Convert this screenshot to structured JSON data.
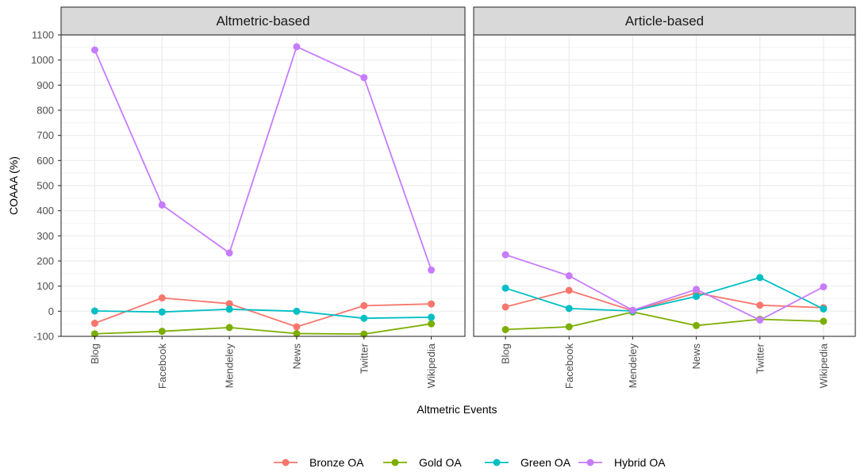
{
  "chart_data": {
    "type": "line",
    "xlabel": "Altmetric Events",
    "ylabel": "COAAA (%)",
    "ylim": [
      -100,
      1100
    ],
    "yticks": [
      -100,
      0,
      100,
      200,
      300,
      400,
      500,
      600,
      700,
      800,
      900,
      1000,
      1100
    ],
    "categories": [
      "Blog",
      "Facebook",
      "Mendeley",
      "News",
      "Twitter",
      "Wikipedia"
    ],
    "grid": true,
    "legend_position": "bottom",
    "series_colors": {
      "Bronze OA": "#F8766D",
      "Gold OA": "#7CAE00",
      "Green OA": "#00BFC4",
      "Hybrid OA": "#C77CFF"
    },
    "legend": [
      "Bronze OA",
      "Gold OA",
      "Green OA",
      "Hybrid OA"
    ],
    "panels": [
      {
        "title": "Altmetric-based",
        "series": [
          {
            "name": "Bronze OA",
            "values": [
              -48,
              53,
              30,
              -62,
              22,
              29
            ]
          },
          {
            "name": "Gold OA",
            "values": [
              -90,
              -80,
              -65,
              -89,
              -91,
              -50
            ]
          },
          {
            "name": "Green OA",
            "values": [
              1,
              -3,
              8,
              0,
              -28,
              -24
            ]
          },
          {
            "name": "Hybrid OA",
            "values": [
              1040,
              423,
              232,
              1053,
              930,
              164
            ]
          }
        ]
      },
      {
        "title": "Article-based",
        "series": [
          {
            "name": "Bronze OA",
            "values": [
              17,
              83,
              2,
              73,
              24,
              14
            ]
          },
          {
            "name": "Gold OA",
            "values": [
              -73,
              -62,
              -3,
              -57,
              -32,
              -40
            ]
          },
          {
            "name": "Green OA",
            "values": [
              92,
              11,
              1,
              59,
              134,
              9
            ]
          },
          {
            "name": "Hybrid OA",
            "values": [
              225,
              141,
              4,
              87,
              -35,
              97
            ]
          }
        ]
      }
    ]
  }
}
